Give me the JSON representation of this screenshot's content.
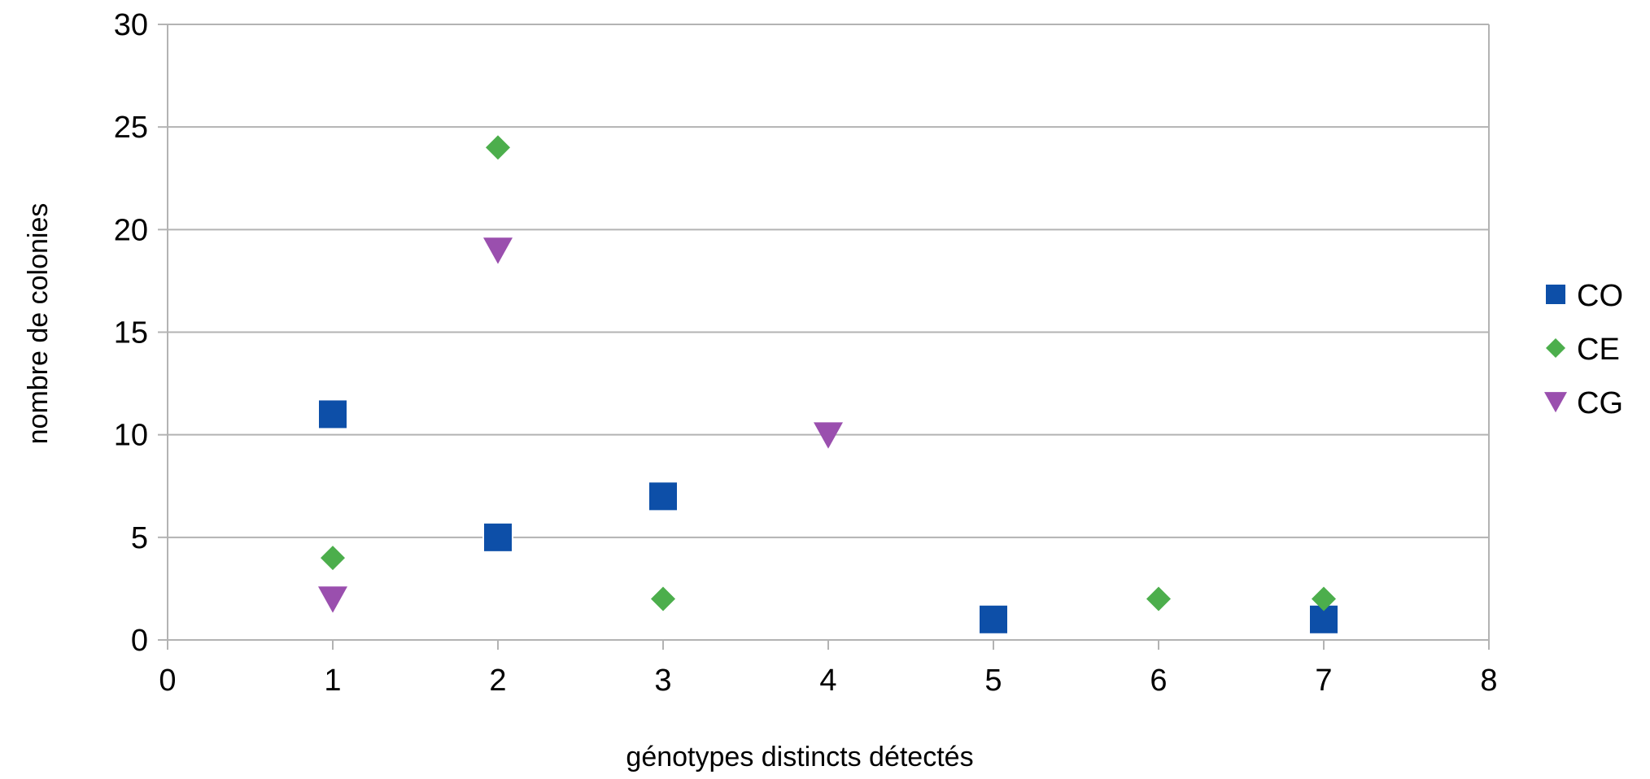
{
  "chart_data": {
    "type": "scatter",
    "title": "",
    "xlabel": "génotypes distincts détectés",
    "ylabel": "nombre de colonies",
    "xlim": [
      0,
      8
    ],
    "ylim": [
      0,
      30
    ],
    "xticks": [
      "0",
      "1",
      "2",
      "3",
      "4",
      "5",
      "6",
      "7",
      "8"
    ],
    "yticks": [
      "0",
      "5",
      "10",
      "15",
      "20",
      "25",
      "30"
    ],
    "grid": "horizontal",
    "legend_position": "right",
    "series": [
      {
        "name": "CO",
        "marker": "square",
        "color": "#0d4fa8",
        "points": [
          {
            "x": 1,
            "y": 11
          },
          {
            "x": 2,
            "y": 5
          },
          {
            "x": 3,
            "y": 7
          },
          {
            "x": 5,
            "y": 1
          },
          {
            "x": 7,
            "y": 1
          }
        ]
      },
      {
        "name": "CE",
        "marker": "diamond",
        "color": "#4cae4c",
        "points": [
          {
            "x": 1,
            "y": 4
          },
          {
            "x": 2,
            "y": 24
          },
          {
            "x": 3,
            "y": 2
          },
          {
            "x": 6,
            "y": 2
          },
          {
            "x": 7,
            "y": 2
          }
        ]
      },
      {
        "name": "CG",
        "marker": "triangle-down",
        "color": "#9a4fae",
        "points": [
          {
            "x": 1,
            "y": 2
          },
          {
            "x": 2,
            "y": 19
          },
          {
            "x": 4,
            "y": 10
          }
        ]
      }
    ]
  }
}
